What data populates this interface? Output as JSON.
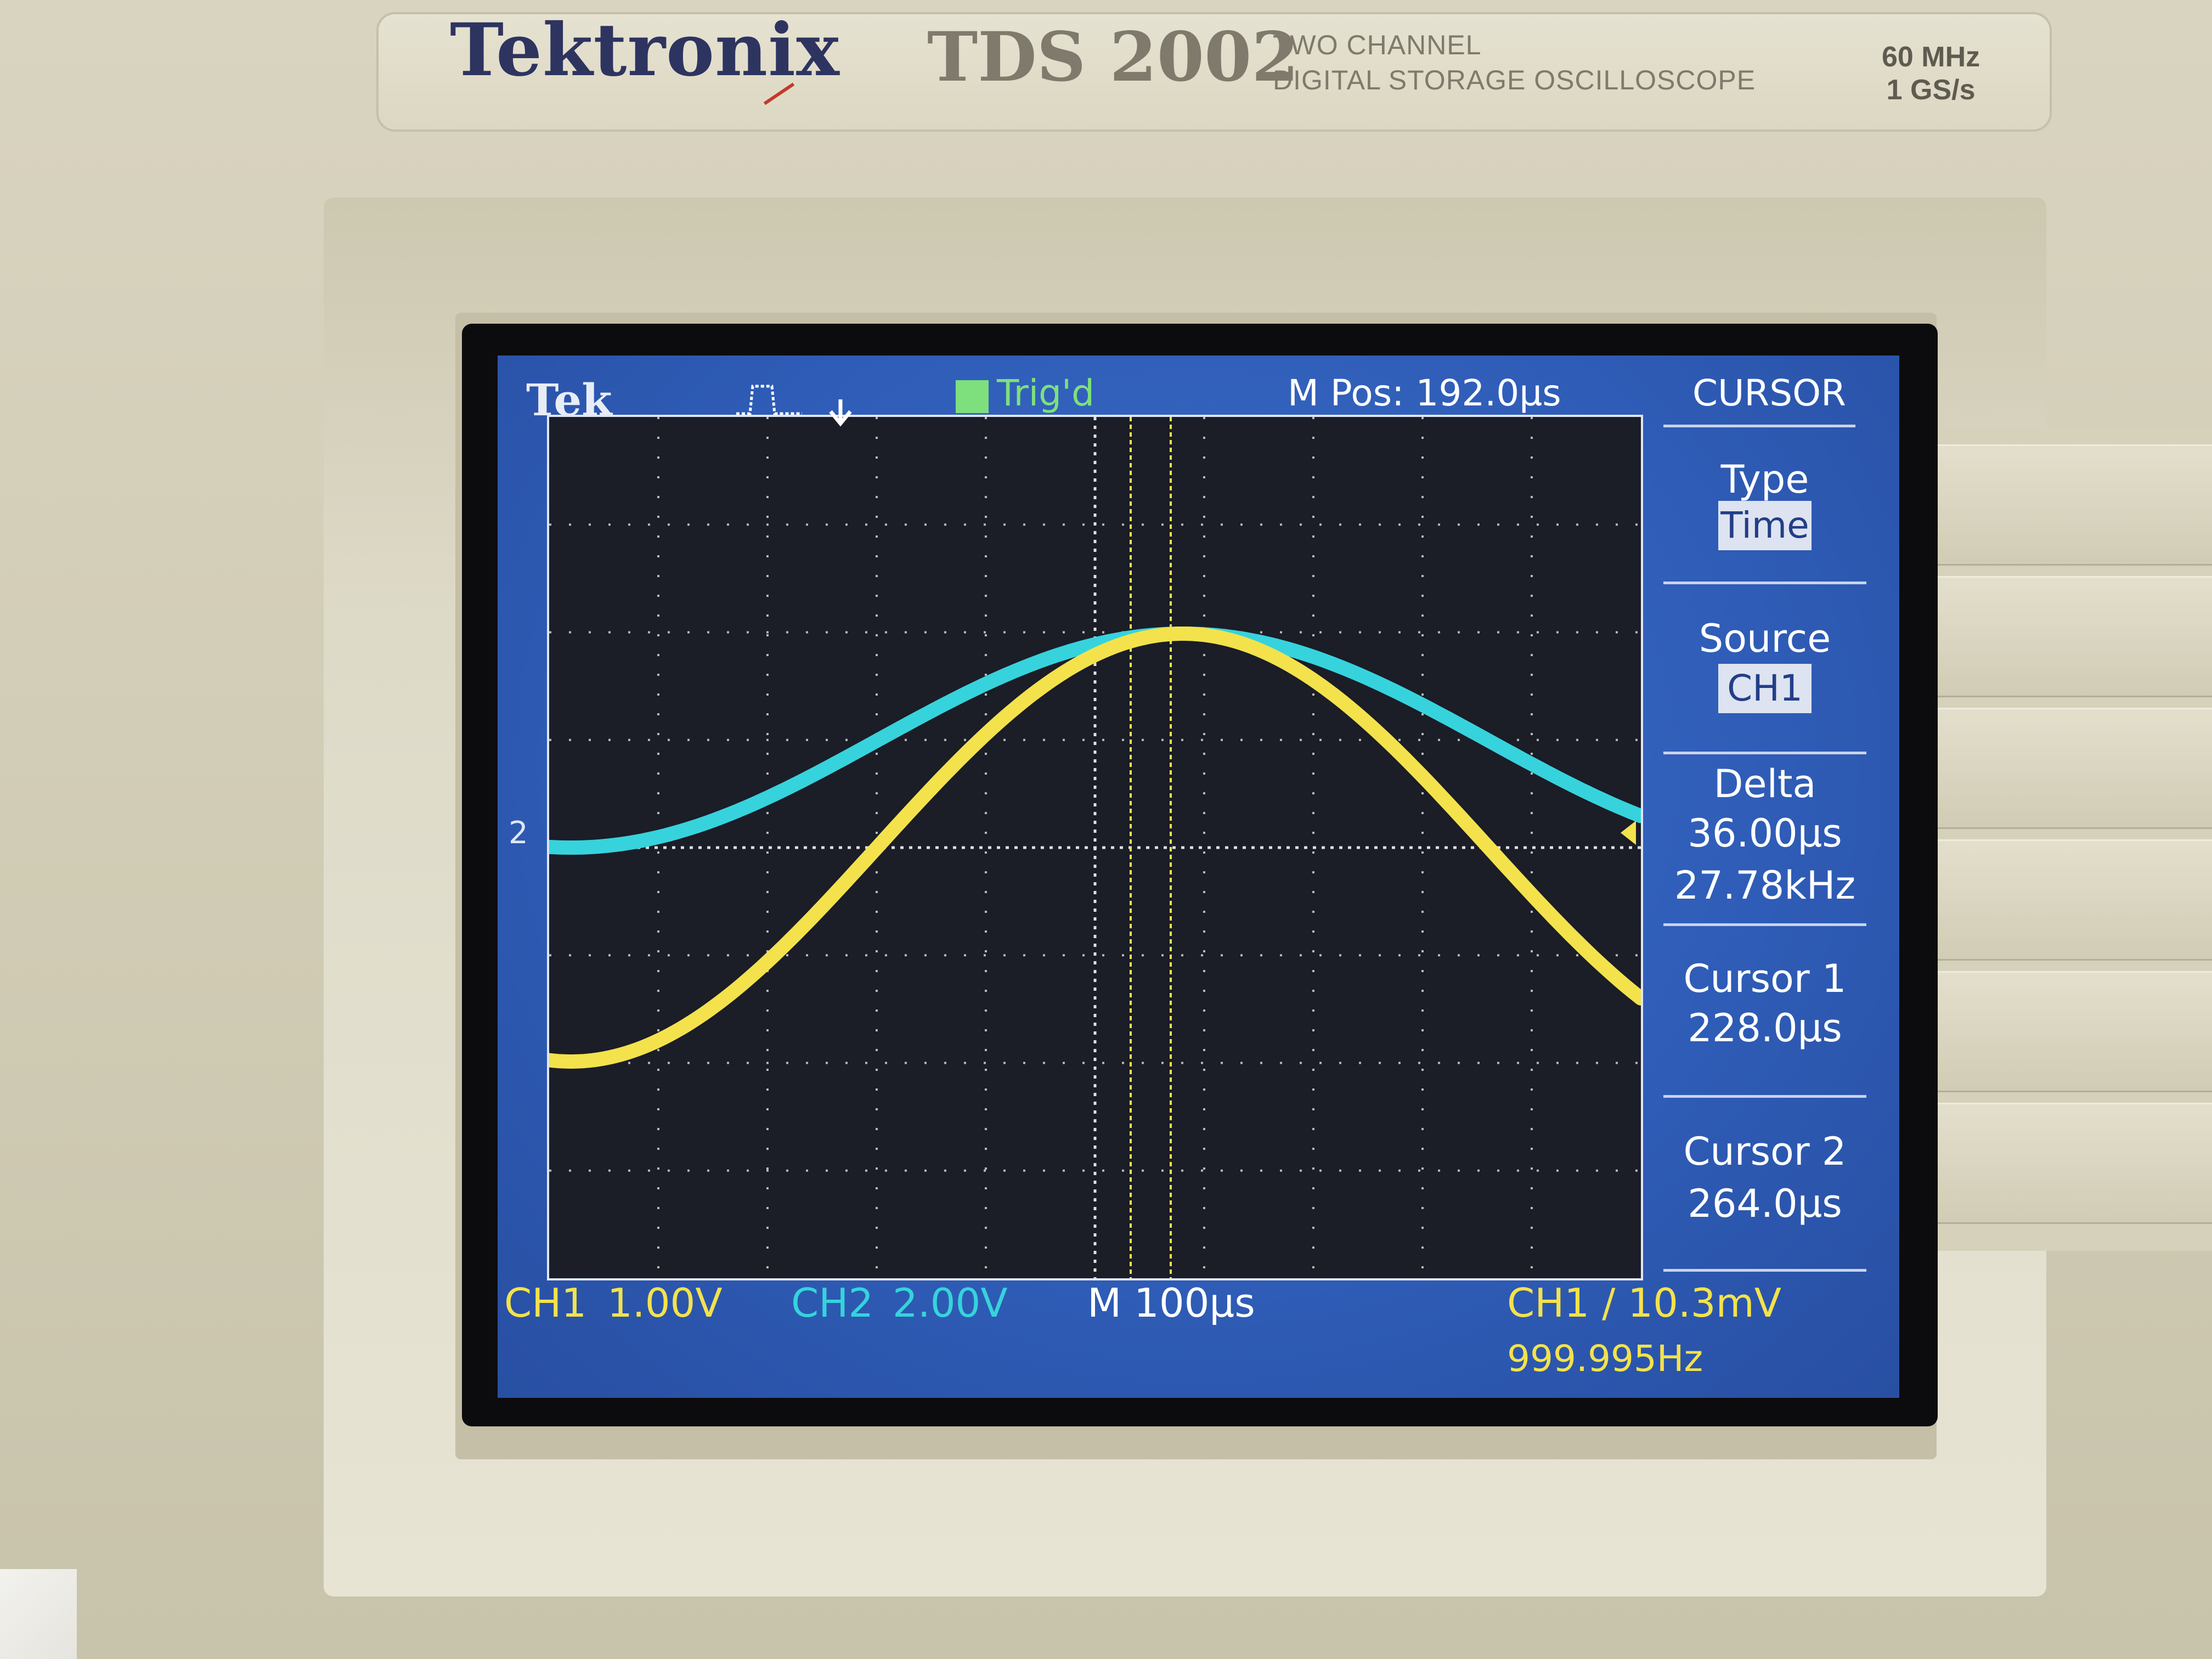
{
  "brand": {
    "logo": "Tektronix",
    "model": "TDS 2002",
    "description_line1": "TWO CHANNEL",
    "description_line2": "DIGITAL STORAGE OSCILLOSCOPE",
    "bandwidth": "60 MHz",
    "sample_rate": "1 GS/s"
  },
  "screen": {
    "header": {
      "logo": "Tek",
      "trigger_status": "Trig'd",
      "position": "M Pos: 192.0µs",
      "menu_title": "CURSOR"
    },
    "menu": {
      "type_label": "Type",
      "type_value": "Time",
      "source_label": "Source",
      "source_value": "CH1",
      "delta_label": "Delta",
      "delta_time": "36.00µs",
      "delta_freq": "27.78kHz",
      "cursor1_label": "Cursor 1",
      "cursor1_value": "228.0µs",
      "cursor2_label": "Cursor 2",
      "cursor2_value": "264.0µs"
    },
    "footer": {
      "ch1_name": "CH1",
      "ch1_scale": "1.00V",
      "ch2_name": "CH2",
      "ch2_scale": "2.00V",
      "timebase": "M 100µs",
      "trigger_info": "CH1 ∕ 10.3mV",
      "trigger_freq": "999.995Hz"
    },
    "channel2_marker": "2"
  },
  "colors": {
    "ch1": "#f3e24c",
    "ch2": "#36d3dc",
    "screen_bg": "#2f5db8",
    "grid": "#c8c8c8",
    "trigger": "#7de07d"
  }
}
